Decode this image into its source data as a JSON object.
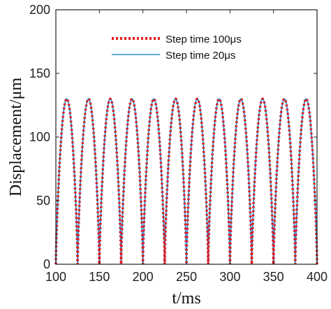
{
  "chart_data": {
    "type": "line",
    "xlabel": "t/ms",
    "ylabel": "Displacement/μm",
    "xlim": [
      100,
      400
    ],
    "ylim": [
      0,
      200
    ],
    "xticks": [
      100,
      150,
      200,
      250,
      300,
      350,
      400
    ],
    "yticks": [
      0,
      50,
      100,
      150,
      200
    ],
    "grid": false,
    "legend_position": "top-center",
    "period_ms": 25,
    "cycle_start_ms": 100,
    "peak_value": 130,
    "series": [
      {
        "name": "Step time  100μs",
        "style": "dotted",
        "color": "#e41a1c",
        "step_ms": 0.1
      },
      {
        "name": "Step time   20μs",
        "style": "solid",
        "color": "#2b8fd6",
        "step_ms": 0.02
      }
    ],
    "x": [
      100,
      112.5,
      125,
      137.5,
      150,
      162.5,
      175,
      187.5,
      200,
      212.5,
      225,
      237.5,
      250,
      262.5,
      275,
      287.5,
      300,
      312.5,
      325,
      337.5,
      350,
      362.5,
      375,
      387.5,
      400
    ],
    "y": [
      0,
      130,
      0,
      130,
      0,
      130,
      0,
      130,
      0,
      130,
      0,
      130,
      0,
      130,
      0,
      130,
      0,
      130,
      0,
      130,
      0,
      130,
      0,
      130,
      0
    ]
  }
}
